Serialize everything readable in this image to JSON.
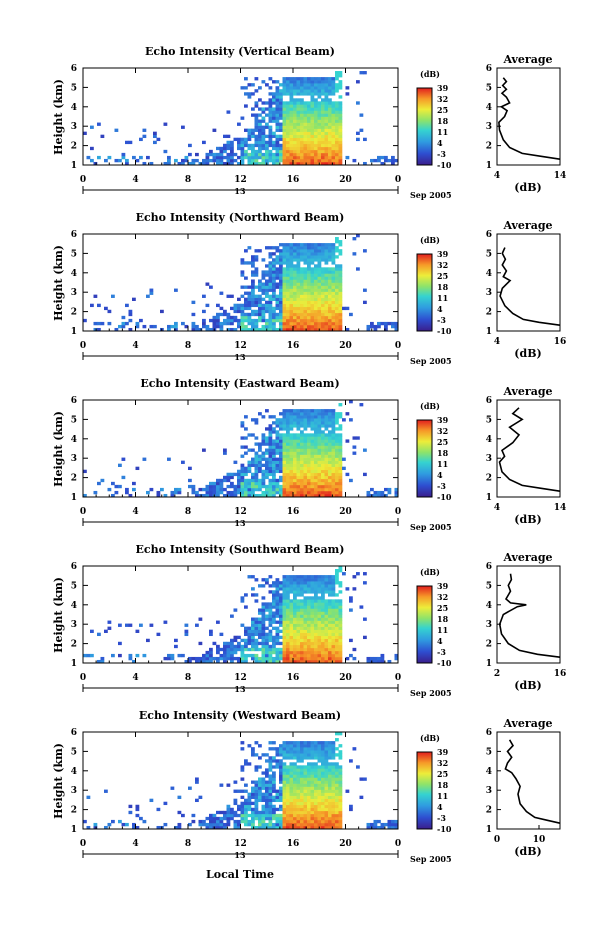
{
  "figure": {
    "bottom_xlabel": "Local Time",
    "date_label": "Sep 2005",
    "x_ticks": [
      "0",
      "4",
      "8",
      "12",
      "16",
      "20",
      "0"
    ],
    "day_label": "13",
    "y_ticks": [
      "1",
      "2",
      "3",
      "4",
      "5",
      "6"
    ],
    "ylabel": "Height (km)",
    "colorbar_unit": "(dB)",
    "avg_title": "Average",
    "avg_xlabel": "(dB)"
  },
  "chart_data": [
    {
      "type": "heatmap",
      "title": "Echo Intensity (Vertical Beam)",
      "beam": "vertical",
      "xlim": [
        0,
        24
      ],
      "ylim": [
        1,
        6
      ],
      "colorbar": {
        "ticks": [
          "39",
          "32",
          "25",
          "18",
          "11",
          "4",
          "-3",
          "-10"
        ],
        "range": [
          -10,
          39
        ]
      },
      "average": {
        "type": "line",
        "xticks": [
          "4",
          "14"
        ],
        "xlim": [
          4,
          14
        ],
        "ylim": [
          1,
          6
        ],
        "profile": [
          [
            14,
            1.3
          ],
          [
            11,
            1.45
          ],
          [
            8,
            1.6
          ],
          [
            6,
            1.9
          ],
          [
            5,
            2.3
          ],
          [
            4.4,
            2.8
          ],
          [
            4.3,
            3.2
          ],
          [
            5.2,
            3.5
          ],
          [
            5.6,
            3.8
          ],
          [
            4.7,
            4.0
          ],
          [
            6.0,
            4.2
          ],
          [
            5.5,
            4.5
          ],
          [
            4.8,
            4.7
          ],
          [
            5.5,
            4.9
          ],
          [
            4.9,
            5.1
          ],
          [
            5.5,
            5.3
          ],
          [
            5.0,
            5.5
          ]
        ]
      }
    },
    {
      "type": "heatmap",
      "title": "Echo Intensity (Northward Beam)",
      "beam": "northward",
      "xlim": [
        0,
        24
      ],
      "ylim": [
        1,
        6
      ],
      "colorbar": {
        "ticks": [
          "39",
          "32",
          "25",
          "18",
          "11",
          "4",
          "-3",
          "-10"
        ],
        "range": [
          -10,
          39
        ]
      },
      "average": {
        "type": "line",
        "xticks": [
          "4",
          "16"
        ],
        "xlim": [
          4,
          16
        ],
        "ylim": [
          1,
          6
        ],
        "profile": [
          [
            16,
            1.3
          ],
          [
            12,
            1.45
          ],
          [
            9,
            1.6
          ],
          [
            7,
            1.9
          ],
          [
            5.5,
            2.3
          ],
          [
            4.6,
            2.8
          ],
          [
            5.0,
            3.2
          ],
          [
            6.5,
            3.6
          ],
          [
            5.2,
            3.8
          ],
          [
            5.8,
            4.1
          ],
          [
            5.0,
            4.4
          ],
          [
            5.6,
            4.7
          ],
          [
            5.0,
            5.0
          ],
          [
            5.5,
            5.3
          ]
        ]
      }
    },
    {
      "type": "heatmap",
      "title": "Echo Intensity (Eastward Beam)",
      "beam": "eastward",
      "xlim": [
        0,
        24
      ],
      "ylim": [
        1,
        6
      ],
      "colorbar": {
        "ticks": [
          "39",
          "32",
          "25",
          "18",
          "11",
          "4",
          "-3",
          "-10"
        ],
        "range": [
          -10,
          39
        ]
      },
      "average": {
        "type": "line",
        "xticks": [
          "4",
          "14"
        ],
        "xlim": [
          4,
          14
        ],
        "ylim": [
          1,
          6
        ],
        "profile": [
          [
            14,
            1.3
          ],
          [
            11,
            1.45
          ],
          [
            8,
            1.6
          ],
          [
            6,
            1.9
          ],
          [
            4.8,
            2.3
          ],
          [
            4.4,
            2.8
          ],
          [
            5.2,
            3.1
          ],
          [
            4.8,
            3.4
          ],
          [
            6.5,
            3.8
          ],
          [
            7.5,
            4.2
          ],
          [
            6.0,
            4.6
          ],
          [
            8.0,
            5.0
          ],
          [
            6.5,
            5.3
          ],
          [
            7.5,
            5.6
          ]
        ]
      }
    },
    {
      "type": "heatmap",
      "title": "Echo Intensity (Southward Beam)",
      "beam": "southward",
      "xlim": [
        0,
        24
      ],
      "ylim": [
        1,
        6
      ],
      "colorbar": {
        "ticks": [
          "39",
          "32",
          "25",
          "18",
          "11",
          "4",
          "-3",
          "-10"
        ],
        "range": [
          -10,
          39
        ]
      },
      "average": {
        "type": "line",
        "xticks": [
          "2",
          "16"
        ],
        "xlim": [
          2,
          16
        ],
        "ylim": [
          1,
          6
        ],
        "profile": [
          [
            16,
            1.3
          ],
          [
            11,
            1.45
          ],
          [
            7,
            1.65
          ],
          [
            4.5,
            2.0
          ],
          [
            3.0,
            2.5
          ],
          [
            2.6,
            3.0
          ],
          [
            3.4,
            3.5
          ],
          [
            6.5,
            3.9
          ],
          [
            8.5,
            4.0
          ],
          [
            5.0,
            4.1
          ],
          [
            4.0,
            4.3
          ],
          [
            5.0,
            4.7
          ],
          [
            4.5,
            5.0
          ],
          [
            5.2,
            5.3
          ],
          [
            5.0,
            5.6
          ]
        ]
      }
    },
    {
      "type": "heatmap",
      "title": "Echo Intensity (Westward Beam)",
      "beam": "westward",
      "xlim": [
        0,
        24
      ],
      "ylim": [
        1,
        6
      ],
      "colorbar": {
        "ticks": [
          "39",
          "32",
          "25",
          "18",
          "11",
          "4",
          "-3",
          "-10"
        ],
        "range": [
          -10,
          39
        ]
      },
      "average": {
        "type": "line",
        "xticks": [
          "0",
          "10"
        ],
        "xlim": [
          0,
          15
        ],
        "ylim": [
          1,
          6
        ],
        "profile": [
          [
            15,
            1.3
          ],
          [
            12,
            1.45
          ],
          [
            9,
            1.6
          ],
          [
            7,
            1.9
          ],
          [
            5.5,
            2.3
          ],
          [
            5.0,
            2.8
          ],
          [
            5.5,
            3.2
          ],
          [
            4.5,
            3.6
          ],
          [
            3.5,
            3.9
          ],
          [
            2.0,
            4.1
          ],
          [
            2.5,
            4.4
          ],
          [
            3.5,
            4.7
          ],
          [
            2.5,
            5.0
          ],
          [
            3.8,
            5.3
          ],
          [
            3.0,
            5.6
          ]
        ]
      }
    }
  ]
}
